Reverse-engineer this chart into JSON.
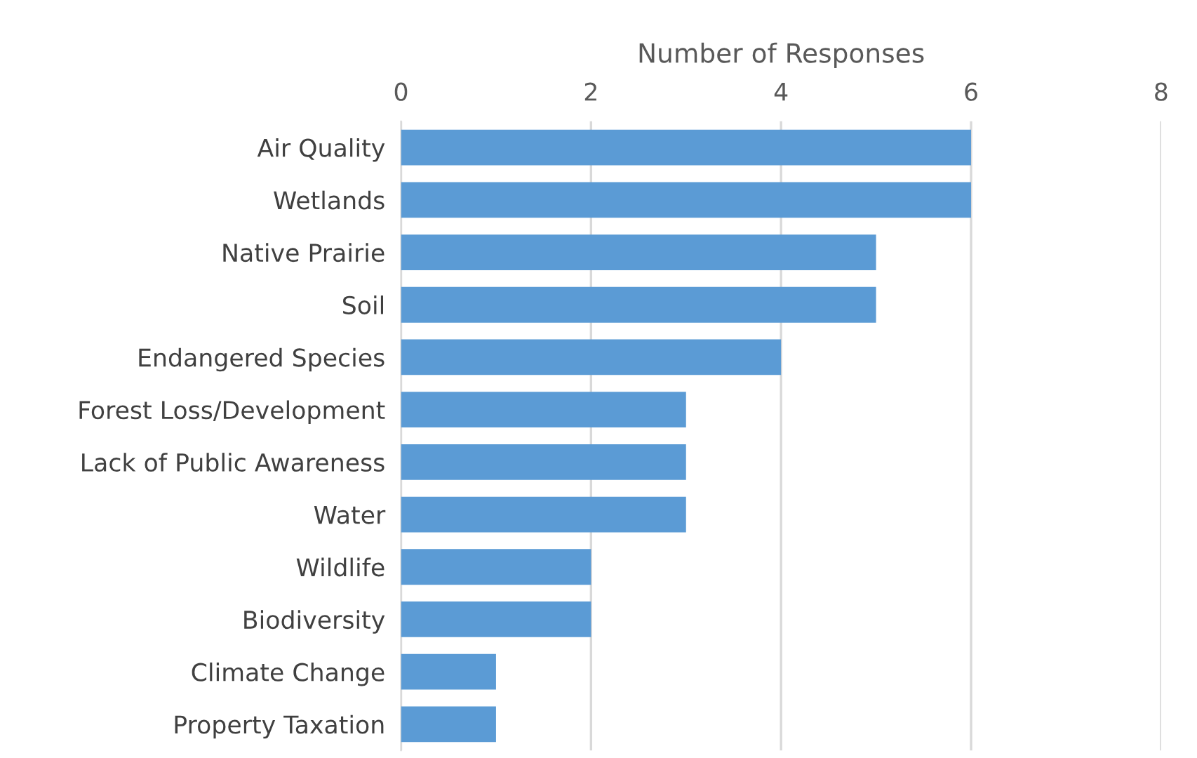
{
  "chart_data": {
    "type": "bar",
    "orientation": "horizontal",
    "xlabel": "Number of Responses",
    "categories": [
      "Air Quality",
      "Wetlands",
      "Native Prairie",
      "Soil",
      "Endangered Species",
      "Forest Loss/Development",
      "Lack of Public Awareness",
      "Water",
      "Wildlife",
      "Biodiversity",
      "Climate Change",
      "Property Taxation"
    ],
    "values": [
      6,
      6,
      5,
      5,
      4,
      3,
      3,
      3,
      2,
      2,
      1,
      1
    ],
    "color": "#5b9bd5",
    "xlim": [
      0,
      8
    ],
    "xticks": [
      0,
      2,
      4,
      6,
      8
    ],
    "grid": "x"
  }
}
